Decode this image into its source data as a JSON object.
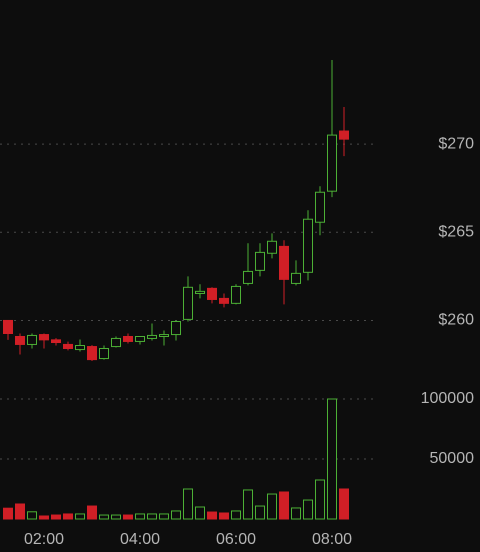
{
  "chart_data": {
    "type": "candlestick",
    "x": [
      "01:15",
      "01:30",
      "01:45",
      "02:00",
      "02:15",
      "02:30",
      "02:45",
      "03:00",
      "03:15",
      "03:30",
      "03:45",
      "04:00",
      "04:15",
      "04:30",
      "04:45",
      "05:00",
      "05:15",
      "05:30",
      "05:45",
      "06:00",
      "06:15",
      "06:30",
      "06:45",
      "07:00",
      "07:15",
      "07:30",
      "07:45",
      "08:00",
      "08:15"
    ],
    "open": [
      260.0,
      259.09,
      258.64,
      259.2,
      258.9,
      258.64,
      258.35,
      258.52,
      257.84,
      258.52,
      259.09,
      258.81,
      258.98,
      259.09,
      259.2,
      260.06,
      261.53,
      261.82,
      261.25,
      260.97,
      262.1,
      262.84,
      263.81,
      264.2,
      262.1,
      262.73,
      265.57,
      267.33,
      270.74
    ],
    "high": [
      260.0,
      259.26,
      259.26,
      259.26,
      259.0,
      258.8,
      258.92,
      258.6,
      258.58,
      259.09,
      259.26,
      259.09,
      259.83,
      259.43,
      260.0,
      262.5,
      262.05,
      261.88,
      261.53,
      262.05,
      264.38,
      264.38,
      264.94,
      264.55,
      263.41,
      266.25,
      267.61,
      274.77,
      272.1
    ],
    "low": [
      258.9,
      258.07,
      258.41,
      258.41,
      258.58,
      258.3,
      258.24,
      257.7,
      257.78,
      258.47,
      258.69,
      258.64,
      258.86,
      258.58,
      258.86,
      259.94,
      261.25,
      260.97,
      260.74,
      260.91,
      261.99,
      262.5,
      263.52,
      260.91,
      261.99,
      262.27,
      264.83,
      266.99,
      269.32
    ],
    "close": [
      259.26,
      258.64,
      259.15,
      258.9,
      258.75,
      258.41,
      258.58,
      257.78,
      258.41,
      258.98,
      258.81,
      259.09,
      259.15,
      259.2,
      259.94,
      261.88,
      261.65,
      261.19,
      260.97,
      261.93,
      262.78,
      263.86,
      264.49,
      262.33,
      262.67,
      265.74,
      267.27,
      270.51,
      270.28
    ],
    "volume": [
      9000,
      12500,
      6000,
      2500,
      3300,
      4200,
      4200,
      10800,
      3300,
      3300,
      3300,
      4200,
      4200,
      4200,
      6700,
      25000,
      10000,
      5800,
      5000,
      6700,
      24200,
      10800,
      20800,
      22500,
      9200,
      15800,
      32500,
      100000,
      25000
    ],
    "up_color": "#4cb035",
    "down_color": "#d11f26",
    "ylim": [
      256,
      278
    ],
    "yticks": [
      {
        "value": 260,
        "label": "$260"
      },
      {
        "value": 265,
        "label": "$265"
      },
      {
        "value": 270,
        "label": "$270"
      }
    ],
    "y2lim": [
      0,
      110000
    ],
    "y2ticks": [
      50000,
      100000
    ],
    "xticks": [
      "02:00",
      "04:00",
      "06:00",
      "08:00"
    ],
    "grid": true
  }
}
